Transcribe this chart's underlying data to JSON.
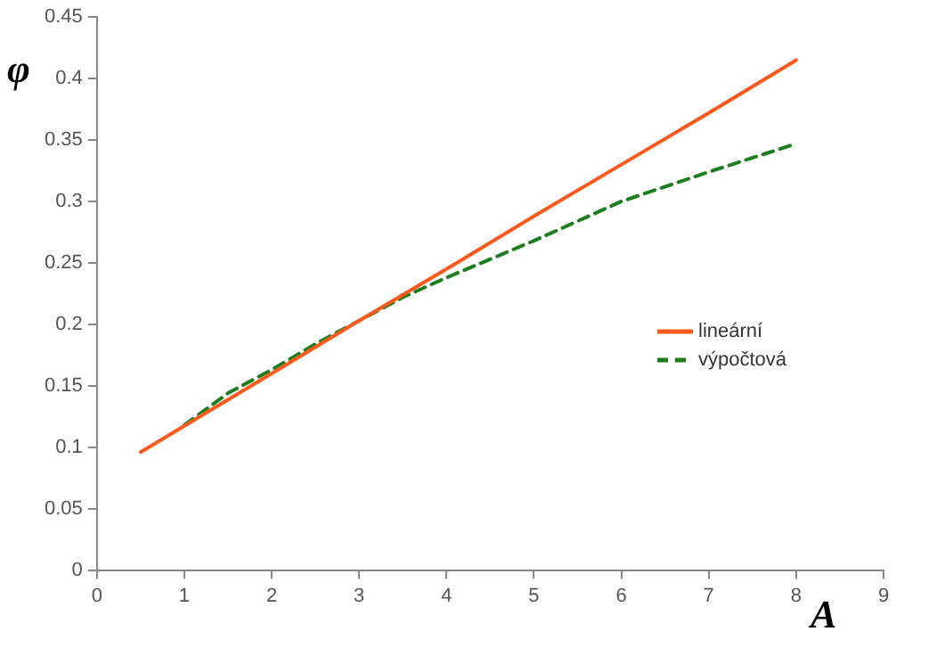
{
  "chart_data": {
    "type": "line",
    "xlabel": "A",
    "ylabel": "φ",
    "xlim": [
      0,
      9
    ],
    "xticks": [
      0,
      1,
      2,
      3,
      4,
      5,
      6,
      7,
      8,
      9
    ],
    "ylim": [
      0,
      0.45
    ],
    "yticks": [
      0,
      0.05,
      0.1,
      0.15,
      0.2,
      0.25,
      0.3,
      0.35,
      0.4,
      0.45
    ],
    "grid": false,
    "legend": "right",
    "marker": "none",
    "series": [
      {
        "name": "lineární",
        "color": "#ff5a1e",
        "line_style": "solid",
        "x": [
          0.5,
          2,
          3,
          4,
          5,
          6,
          7,
          8
        ],
        "values": [
          0.096,
          0.16,
          0.203,
          0.245,
          0.288,
          0.33,
          0.372,
          0.415
        ]
      },
      {
        "name": "výpočtová",
        "color": "#1e7d1e",
        "line_style": "dashed",
        "x": [
          1,
          1.5,
          2,
          2.5,
          3,
          3.5,
          4,
          5,
          6,
          7,
          8
        ],
        "values": [
          0.118,
          0.144,
          0.163,
          0.184,
          0.203,
          0.222,
          0.238,
          0.268,
          0.3,
          0.324,
          0.347
        ]
      }
    ]
  }
}
